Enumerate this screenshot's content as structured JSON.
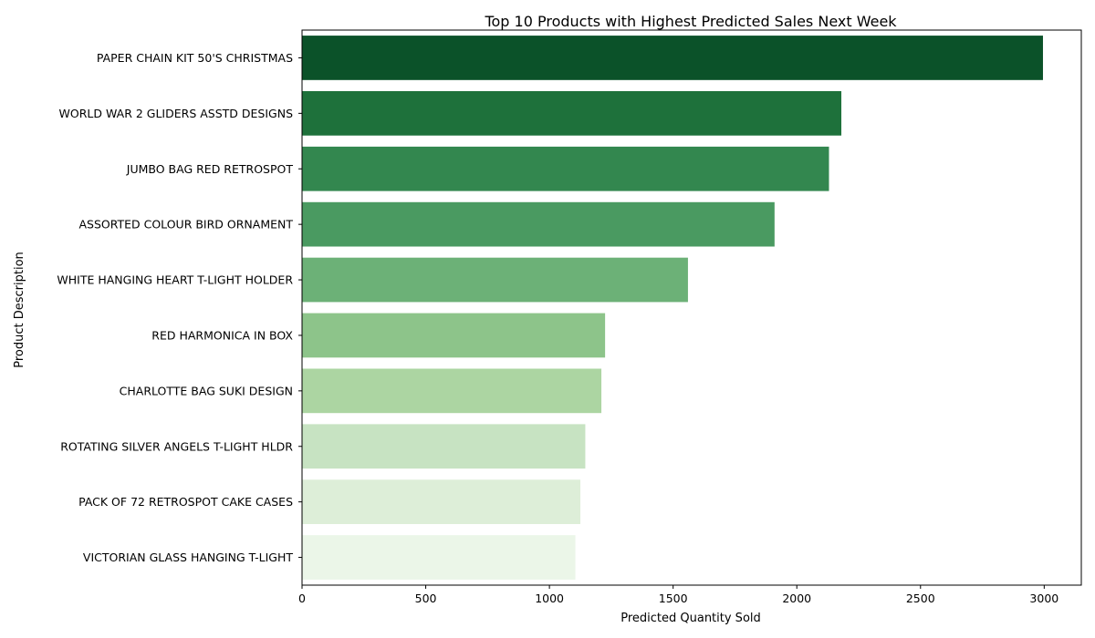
{
  "chart_data": {
    "type": "bar",
    "orientation": "horizontal",
    "title": "Top 10 Products with Highest Predicted Sales Next Week",
    "xlabel": "Predicted Quantity Sold",
    "ylabel": "Product Description",
    "xlim": [
      0,
      3150
    ],
    "xticks": [
      0,
      500,
      1000,
      1500,
      2000,
      2500,
      3000
    ],
    "grid": false,
    "categories": [
      "PAPER CHAIN KIT 50'S CHRISTMAS ",
      "WORLD WAR 2 GLIDERS ASSTD DESIGNS",
      "JUMBO BAG RED RETROSPOT",
      "ASSORTED COLOUR BIRD ORNAMENT",
      "WHITE HANGING HEART T-LIGHT HOLDER",
      "RED  HARMONICA IN BOX ",
      "CHARLOTTE BAG SUKI DESIGN",
      "ROTATING SILVER ANGELS T-LIGHT HLDR",
      "PACK OF 72 RETROSPOT CAKE CASES",
      "VICTORIAN GLASS HANGING T-LIGHT"
    ],
    "values": [
      2995,
      2180,
      2130,
      1910,
      1560,
      1225,
      1210,
      1145,
      1125,
      1105
    ],
    "colors": [
      "#0b5229",
      "#1e713b",
      "#33874f",
      "#4a9a61",
      "#6cb177",
      "#8dc48a",
      "#acd5a2",
      "#c7e3c2",
      "#ddeed8",
      "#ebf6e8"
    ]
  }
}
